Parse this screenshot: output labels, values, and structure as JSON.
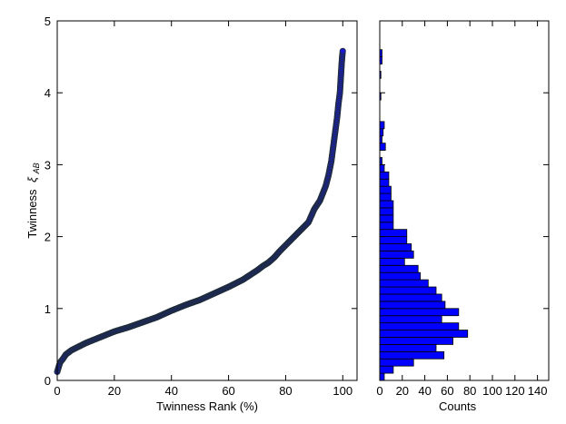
{
  "chart_data": [
    {
      "type": "scatter",
      "xlabel": "Twinness Rank (%)",
      "ylabel": "Twinness",
      "ylabel_symbol": "ξ",
      "ylabel_subscript": "AB",
      "xlim": [
        0,
        105
      ],
      "ylim": [
        0,
        5
      ],
      "xticks": [
        "0",
        "20",
        "40",
        "60",
        "80",
        "100"
      ],
      "yticks": [
        "0",
        "1",
        "2",
        "3",
        "4",
        "5"
      ],
      "marker_color": "#1a1acc",
      "marker_edge": "#1f2d3a",
      "x": [
        0,
        1,
        2,
        3,
        5,
        8,
        10,
        15,
        20,
        25,
        30,
        35,
        40,
        45,
        50,
        55,
        60,
        65,
        70,
        72,
        74,
        76,
        78,
        80,
        83,
        86,
        88,
        90,
        92,
        94,
        95,
        96,
        97,
        98,
        98.5,
        99,
        99.3,
        99.6,
        99.8,
        100
      ],
      "y": [
        0.12,
        0.25,
        0.3,
        0.36,
        0.42,
        0.48,
        0.52,
        0.6,
        0.68,
        0.74,
        0.81,
        0.88,
        0.97,
        1.05,
        1.12,
        1.21,
        1.3,
        1.4,
        1.53,
        1.59,
        1.64,
        1.71,
        1.8,
        1.88,
        2.0,
        2.12,
        2.2,
        2.38,
        2.5,
        2.7,
        2.85,
        3.05,
        3.35,
        3.65,
        3.85,
        4.0,
        4.2,
        4.4,
        4.5,
        4.58
      ]
    },
    {
      "type": "bar",
      "orientation": "horizontal",
      "xlabel": "Counts",
      "xlim": [
        0,
        150
      ],
      "xticks": [
        "0",
        "20",
        "40",
        "60",
        "80",
        "100",
        "120",
        "140"
      ],
      "bar_color": "#0000ff",
      "bar_edge": "#000000",
      "bins": [
        {
          "y0": 0.0,
          "y1": 0.1,
          "count": 4
        },
        {
          "y0": 0.1,
          "y1": 0.2,
          "count": 12
        },
        {
          "y0": 0.2,
          "y1": 0.3,
          "count": 30
        },
        {
          "y0": 0.3,
          "y1": 0.4,
          "count": 57
        },
        {
          "y0": 0.4,
          "y1": 0.5,
          "count": 50
        },
        {
          "y0": 0.5,
          "y1": 0.6,
          "count": 65
        },
        {
          "y0": 0.6,
          "y1": 0.7,
          "count": 78
        },
        {
          "y0": 0.7,
          "y1": 0.8,
          "count": 70
        },
        {
          "y0": 0.8,
          "y1": 0.9,
          "count": 55
        },
        {
          "y0": 0.9,
          "y1": 1.0,
          "count": 70
        },
        {
          "y0": 1.0,
          "y1": 1.1,
          "count": 58
        },
        {
          "y0": 1.1,
          "y1": 1.2,
          "count": 55
        },
        {
          "y0": 1.2,
          "y1": 1.3,
          "count": 50
        },
        {
          "y0": 1.3,
          "y1": 1.4,
          "count": 43
        },
        {
          "y0": 1.4,
          "y1": 1.5,
          "count": 36
        },
        {
          "y0": 1.5,
          "y1": 1.6,
          "count": 34
        },
        {
          "y0": 1.6,
          "y1": 1.7,
          "count": 22
        },
        {
          "y0": 1.7,
          "y1": 1.8,
          "count": 30
        },
        {
          "y0": 1.8,
          "y1": 1.9,
          "count": 28
        },
        {
          "y0": 1.9,
          "y1": 2.0,
          "count": 24
        },
        {
          "y0": 2.0,
          "y1": 2.1,
          "count": 24
        },
        {
          "y0": 2.1,
          "y1": 2.2,
          "count": 12
        },
        {
          "y0": 2.2,
          "y1": 2.3,
          "count": 12
        },
        {
          "y0": 2.3,
          "y1": 2.4,
          "count": 12
        },
        {
          "y0": 2.4,
          "y1": 2.5,
          "count": 12
        },
        {
          "y0": 2.5,
          "y1": 2.6,
          "count": 10
        },
        {
          "y0": 2.6,
          "y1": 2.7,
          "count": 10
        },
        {
          "y0": 2.7,
          "y1": 2.8,
          "count": 8
        },
        {
          "y0": 2.8,
          "y1": 2.9,
          "count": 8
        },
        {
          "y0": 2.9,
          "y1": 3.0,
          "count": 4
        },
        {
          "y0": 3.0,
          "y1": 3.1,
          "count": 2
        },
        {
          "y0": 3.2,
          "y1": 3.3,
          "count": 5
        },
        {
          "y0": 3.3,
          "y1": 3.4,
          "count": 2
        },
        {
          "y0": 3.4,
          "y1": 3.5,
          "count": 3
        },
        {
          "y0": 3.5,
          "y1": 3.6,
          "count": 4
        },
        {
          "y0": 3.9,
          "y1": 4.0,
          "count": 1
        },
        {
          "y0": 4.2,
          "y1": 4.3,
          "count": 1
        },
        {
          "y0": 4.4,
          "y1": 4.5,
          "count": 2
        },
        {
          "y0": 4.5,
          "y1": 4.6,
          "count": 2
        }
      ]
    }
  ]
}
